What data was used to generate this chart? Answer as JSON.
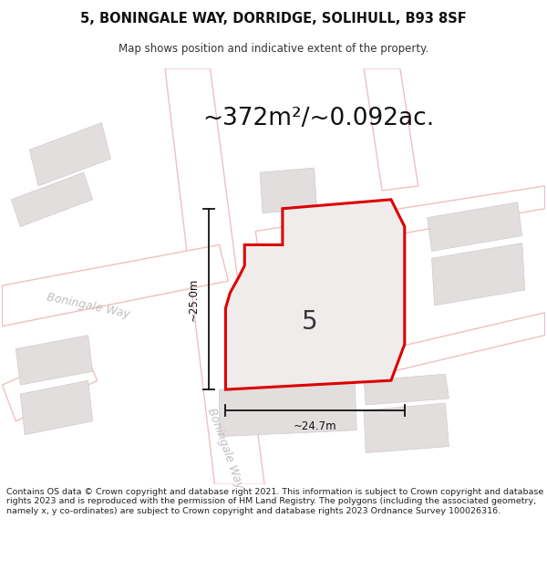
{
  "title_line1": "5, BONINGALE WAY, DORRIDGE, SOLIHULL, B93 8SF",
  "title_line2": "Map shows position and indicative extent of the property.",
  "area_text": "~372m²/~0.092ac.",
  "dim_vertical": "~25.0m",
  "dim_horizontal": "~24.7m",
  "label_number": "5",
  "street_label_upper": "Boningale Way",
  "street_label_lower": "Boningale Way",
  "footer_text": "Contains OS data © Crown copyright and database right 2021. This information is subject to Crown copyright and database rights 2023 and is reproduced with the permission of HM Land Registry. The polygons (including the associated geometry, namely x, y co-ordinates) are subject to Crown copyright and database rights 2023 Ordnance Survey 100026316.",
  "bg_color": "#f2f0f0",
  "road_fill": "#ffffff",
  "road_outline": "#f0c0c0",
  "building_color": "#e2dede",
  "building_edge": "#d0cccc",
  "plot_fill": "#f0ecec",
  "plot_edge": "#dd0000",
  "plot_linewidth": 2.2,
  "dim_line_color": "#111111",
  "title_fontsize": 10.5,
  "subtitle_fontsize": 8.5,
  "area_fontsize": 19,
  "label_fontsize": 20,
  "dim_fontsize": 8.5,
  "street_fontsize": 9,
  "footer_fontsize": 6.8
}
